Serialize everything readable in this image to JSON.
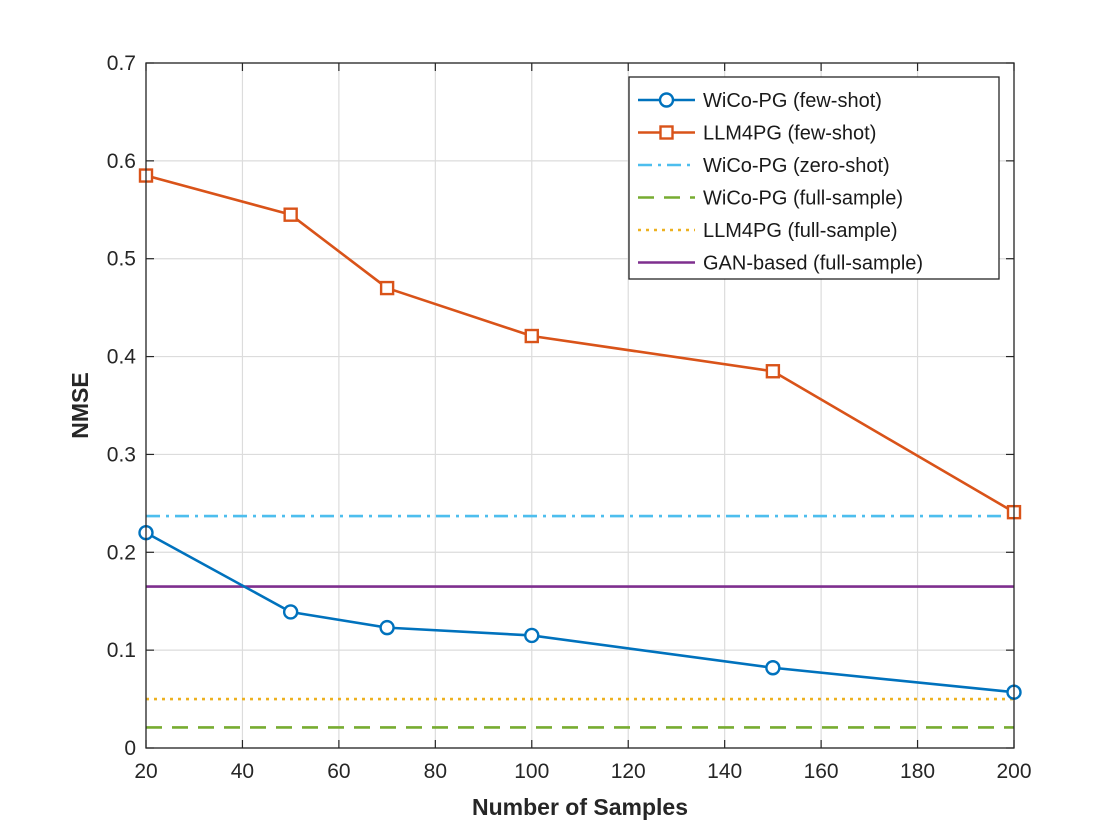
{
  "chart_data": {
    "type": "line",
    "title": "",
    "xlabel": "Number of Samples",
    "ylabel": "NMSE",
    "xlim": [
      20,
      200
    ],
    "ylim": [
      0,
      0.7
    ],
    "xticks": [
      20,
      40,
      60,
      80,
      100,
      120,
      140,
      160,
      180,
      200
    ],
    "yticks": [
      0,
      0.1,
      0.2,
      0.3,
      0.4,
      0.5,
      0.6,
      0.7
    ],
    "xtick_labels": [
      "20",
      "40",
      "60",
      "80",
      "100",
      "120",
      "140",
      "160",
      "180",
      "200"
    ],
    "ytick_labels": [
      "0",
      "0.1",
      "0.2",
      "0.3",
      "0.4",
      "0.5",
      "0.6",
      "0.7"
    ],
    "grid": true,
    "legend_position": "top-right",
    "series": [
      {
        "name": "WiCo-PG (few-shot)",
        "color": "#0072BD",
        "style": "solid",
        "marker": "circle",
        "x": [
          20,
          50,
          70,
          100,
          150,
          200
        ],
        "y": [
          0.22,
          0.139,
          0.123,
          0.115,
          0.082,
          0.057
        ]
      },
      {
        "name": "LLM4PG (few-shot)",
        "color": "#D95319",
        "style": "solid",
        "marker": "square",
        "x": [
          20,
          50,
          70,
          100,
          150,
          200
        ],
        "y": [
          0.585,
          0.545,
          0.47,
          0.421,
          0.385,
          0.241
        ]
      },
      {
        "name": "WiCo-PG (zero-shot)",
        "color": "#4DBEEE",
        "style": "dashdot",
        "marker": "none",
        "x": [
          20,
          200
        ],
        "y": [
          0.237,
          0.237
        ]
      },
      {
        "name": "WiCo-PG (full-sample)",
        "color": "#77AC30",
        "style": "dashed",
        "marker": "none",
        "x": [
          20,
          200
        ],
        "y": [
          0.021,
          0.021
        ]
      },
      {
        "name": "LLM4PG (full-sample)",
        "color": "#EDB120",
        "style": "dotted",
        "marker": "none",
        "x": [
          20,
          200
        ],
        "y": [
          0.05,
          0.05
        ]
      },
      {
        "name": "GAN-based (full-sample)",
        "color": "#7E2F8E",
        "style": "solid",
        "marker": "none",
        "x": [
          20,
          200
        ],
        "y": [
          0.165,
          0.165
        ]
      }
    ]
  }
}
